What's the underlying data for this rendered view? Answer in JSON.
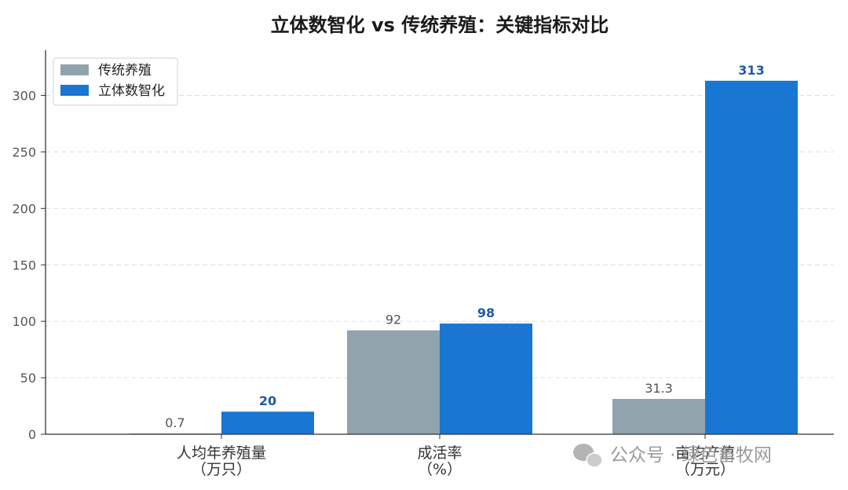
{
  "chart_data": {
    "type": "bar",
    "title": "立体数智化 vs 传统养殖：关键指标对比",
    "categories": [
      {
        "line1": "人均年养殖量",
        "line2": "（万只）"
      },
      {
        "line1": "成活率",
        "line2": "（%）"
      },
      {
        "line1": "亩均产值",
        "line2": "（万元）"
      }
    ],
    "series": [
      {
        "name": "传统养殖",
        "values": [
          0.7,
          92,
          31.3
        ],
        "labels": [
          "0.7",
          "92",
          "31.3"
        ],
        "color": "#8fa4ad"
      },
      {
        "name": "立体数智化",
        "values": [
          20,
          98,
          313
        ],
        "labels": [
          "20",
          "98",
          "313"
        ],
        "color": "#1976d2"
      }
    ],
    "yticks": [
      "0",
      "50",
      "100",
      "150",
      "200",
      "250",
      "300"
    ],
    "ylim": [
      0,
      340
    ],
    "grid": "horizontal-dashed",
    "legend_position": "top-left"
  },
  "watermark": {
    "text": "公众号 · 绿色畜牧网",
    "icon": "wechat-icon"
  }
}
